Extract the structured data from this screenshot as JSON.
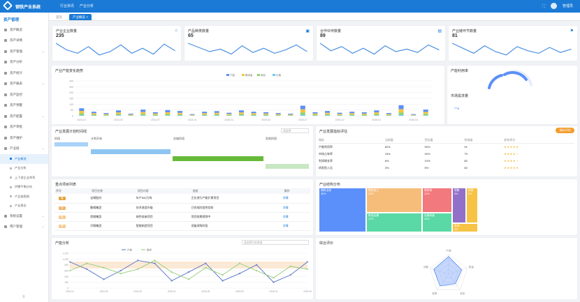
{
  "app": {
    "brand": "钢铁产业系统",
    "topnav": [
      "行业资讯",
      "产业分析"
    ],
    "user": "管理员"
  },
  "sidebar": {
    "title": "资产管理",
    "items": [
      {
        "label": "资产概览"
      },
      {
        "label": "资产详情"
      },
      {
        "label": "资产管理"
      },
      {
        "label": "资产分析"
      },
      {
        "label": "资产统计"
      },
      {
        "label": "资产报表"
      },
      {
        "label": "资产监控"
      },
      {
        "label": "资产预警"
      },
      {
        "label": "资产配置"
      },
      {
        "label": "资产审批"
      },
      {
        "label": "资产维护"
      },
      {
        "label": "产业链"
      }
    ],
    "subs": [
      {
        "label": "产业概览",
        "active": true
      },
      {
        "label": "产业分析"
      },
      {
        "label": "上下游企业关系"
      },
      {
        "label": "供需平衡分析"
      },
      {
        "label": "产业链图谱"
      },
      {
        "label": "产业报告"
      }
    ],
    "bottom": [
      {
        "label": "系统设置"
      },
      {
        "label": "用户管理"
      }
    ]
  },
  "tabs": [
    {
      "label": "首页"
    },
    {
      "label": "产业概览",
      "active": true
    }
  ],
  "kpis": [
    {
      "title": "产业企业数量",
      "value": "235",
      "icon": "building-icon",
      "glyph": "⌂"
    },
    {
      "title": "产品种类数量",
      "value": "65",
      "icon": "box-icon",
      "glyph": "▣"
    },
    {
      "title": "合作伙伴数量",
      "value": "89",
      "icon": "chart-icon",
      "glyph": "▤"
    },
    {
      "title": "产业链环节数量",
      "value": "81",
      "icon": "flag-icon",
      "glyph": "⚑"
    }
  ],
  "stack_chart": {
    "title": "产业产能变化趋势",
    "legend": [
      "产能",
      "需求量",
      "库存",
      "价格"
    ],
    "colors": [
      "#5b8ff9",
      "#f6c344",
      "#91d36b",
      "#6dc8ec"
    ],
    "ylim": [
      0,
      300
    ],
    "yticks": [
      "0",
      "50",
      "100",
      "150",
      "200",
      "250",
      "300"
    ],
    "categories": [
      "2024-01",
      "2024-02",
      "2024-03",
      "2024-04",
      "2024-05",
      "2024-06",
      "2024-07",
      "2024-08",
      "2024-09",
      "2024-10",
      "2024-11",
      "2024-12",
      "2025-01",
      "2025-02",
      "2025-03",
      "2025-04",
      "2025-05",
      "2025-06",
      "2025-07",
      "2025-08",
      "2025-09",
      "2025-10",
      "2025-11",
      "2025-12",
      "2026-01",
      "2026-02",
      "2026-03",
      "2026-04",
      "2026-05"
    ],
    "xlabels": [
      "2024-01",
      "2024-04",
      "2024-07",
      "2024-10",
      "2025-01",
      "2025-04",
      "2025-07",
      "2025-10",
      "2026-01",
      "2026-04"
    ],
    "series": [
      {
        "name": "产能",
        "values": [
          80,
          45,
          30,
          60,
          25,
          70,
          40,
          65,
          55,
          20,
          45,
          50,
          35,
          60,
          45,
          40,
          30,
          25,
          110,
          40,
          55,
          35,
          45,
          40,
          60,
          30,
          120,
          20,
          70
        ]
      },
      {
        "name": "需求量",
        "values": [
          70,
          40,
          25,
          50,
          20,
          60,
          35,
          55,
          45,
          15,
          40,
          45,
          30,
          50,
          40,
          35,
          25,
          20,
          95,
          35,
          45,
          30,
          40,
          35,
          50,
          25,
          100,
          15,
          60
        ]
      },
      {
        "name": "库存",
        "values": [
          60,
          30,
          20,
          40,
          15,
          45,
          25,
          40,
          35,
          10,
          30,
          35,
          20,
          40,
          30,
          25,
          20,
          15,
          75,
          25,
          35,
          20,
          30,
          25,
          40,
          20,
          75,
          10,
          45
        ]
      },
      {
        "name": "价格",
        "values": [
          20,
          10,
          8,
          15,
          5,
          15,
          10,
          15,
          12,
          5,
          10,
          12,
          8,
          15,
          10,
          10,
          8,
          5,
          30,
          10,
          12,
          8,
          10,
          8,
          15,
          8,
          30,
          5,
          15
        ]
      }
    ]
  },
  "progress_card": {
    "label1": "产能利用率",
    "label2": "市场需求量",
    "value": 0.75
  },
  "task_chart": {
    "title": "产业发展计划时间线",
    "select_placeholder": "请选择",
    "headers": [
      "阶段",
      "计划开始",
      "实施阶段",
      "验收阶段"
    ],
    "rows": [
      {
        "label": "规划",
        "value": "规划"
      },
      {
        "label": "设计",
        "value": "设计"
      },
      {
        "label": "建设",
        "value": "建设"
      },
      {
        "label": "验收",
        "value": "验收"
      }
    ]
  },
  "ranking": {
    "title": "产业发展指标评估",
    "tag": "指标评估",
    "headers": [
      "指标",
      "当前值",
      "目标值",
      "完成度",
      "综合评分"
    ],
    "rows": [
      {
        "name": "产能利用率",
        "cur": "82%",
        "target": "90%",
        "done": "91",
        "stars": "★★★★★"
      },
      {
        "name": "市场占有率",
        "cur": "15%",
        "target": "20%",
        "done": "75",
        "stars": "★★★★☆"
      },
      {
        "name": "利润增长率",
        "cur": "8%",
        "target": "10%",
        "done": "80",
        "stars": "★★★★☆"
      },
      {
        "name": "研发投入比",
        "cur": "3%",
        "target": "5%",
        "done": "60",
        "stars": "★★★★★"
      }
    ]
  },
  "todo": {
    "title": "重点项目列表",
    "headers": [
      "序号",
      "项目名称",
      "项目内容",
      "进度",
      "操作"
    ],
    "rows": [
      {
        "pri": "高",
        "color": "#e6a23c",
        "name": "宝钢股份",
        "content": "年产500万吨",
        "status": "正在进行产能扩建项目"
      },
      {
        "pri": "中",
        "color": "#f2b46d",
        "name": "鞍钢集团",
        "content": "技术改造升级",
        "status": "已完成阶段性验收"
      },
      {
        "pri": "低",
        "color": "#f7c98f",
        "name": "首钢集团",
        "content": "绿色低碳项目",
        "status": "项目前期规划中"
      },
      {
        "pri": "低",
        "color": "#f7c98f",
        "name": "河钢集团",
        "content": "智能制造项目",
        "status": "设备采购阶段"
      }
    ],
    "action": "详情"
  },
  "treemap": {
    "title": "产业结构分布",
    "cells": [
      {
        "name": "钢铁冶炼",
        "pct": "35%",
        "color": "#5b8ff9"
      },
      {
        "name": "钢材加工",
        "pct": "20%",
        "color": "#f6bd7a"
      },
      {
        "name": "原材料",
        "pct": "12%",
        "color": "#f2797d"
      },
      {
        "name": "物流运输",
        "pct": "12%",
        "color": "#5ad8a6"
      },
      {
        "name": "设备制造",
        "pct": "10%",
        "color": "#5ad8a6"
      },
      {
        "name": "销售",
        "pct": "5%",
        "color": "#9270ca"
      },
      {
        "name": "研发",
        "pct": "3%",
        "color": "#f6c344"
      },
      {
        "name": "其他",
        "pct": "3%",
        "color": "#f6c344"
      }
    ]
  },
  "line_chart": {
    "title": "产能分析",
    "select_placeholder": "请选择分析维度",
    "legend": [
      "产能",
      "需求"
    ],
    "colors": [
      "#5470c6",
      "#91cc75"
    ],
    "yticks": [
      "1,200",
      "1,000",
      "800",
      "600",
      "400",
      "200",
      "0"
    ],
    "x": [
      "2024-01",
      "2024-03",
      "2024-05",
      "2024-07",
      "2024-09",
      "2024-11",
      "2025-01",
      "2025-03",
      "2025-05",
      "2025-07",
      "2025-09",
      "2025-11",
      "2026-01",
      "2026-03",
      "2026-05"
    ],
    "series": [
      {
        "name": "产能",
        "values": [
          900,
          650,
          300,
          600,
          950,
          850,
          250,
          550,
          850,
          250,
          500,
          800,
          200,
          450,
          900
        ]
      },
      {
        "name": "需求",
        "values": [
          600,
          850,
          700,
          500,
          650,
          950,
          550,
          300,
          700,
          450,
          850,
          600,
          350,
          750,
          650
        ]
      }
    ]
  },
  "radar": {
    "title": "综合评价",
    "axes": [
      "产能",
      "质量",
      "成本",
      "效率",
      "创新"
    ],
    "values": [
      0.9,
      0.7,
      0.6,
      0.75,
      0.8
    ]
  }
}
